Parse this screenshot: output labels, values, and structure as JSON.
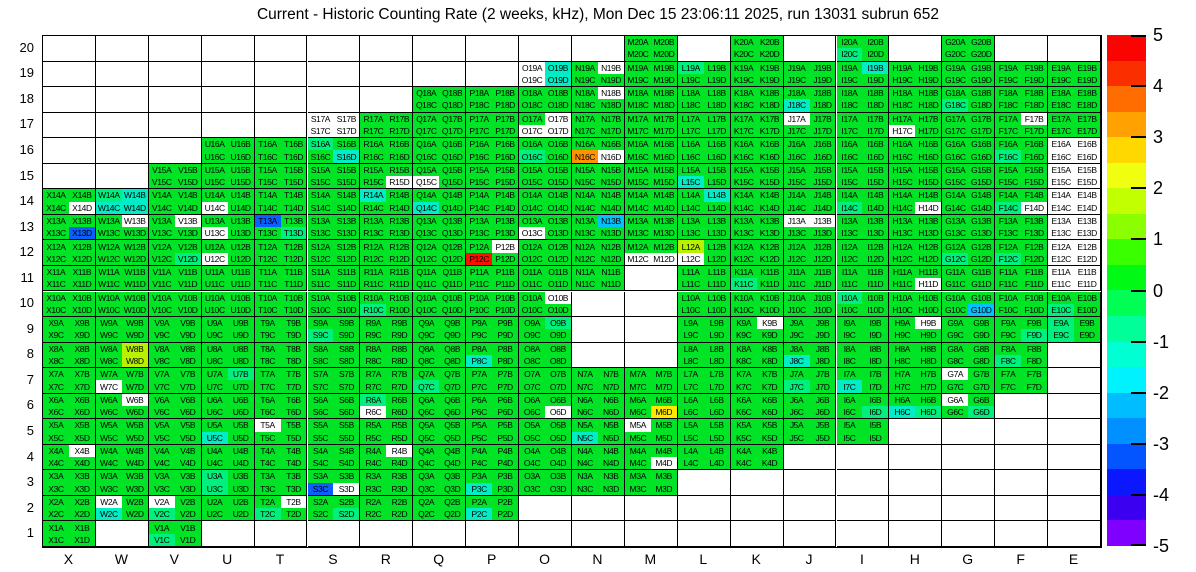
{
  "title": "Current - Historic Counting Rate (2 weeks, kHz), Mon Dec 15 23:06:11 2025, run 13031 subrun 652",
  "chart_data": {
    "type": "heatmap",
    "title": "Current - Historic Counting Rate (2 weeks, kHz), Mon Dec 15 23:06:11 2025, run 13031 subrun 652",
    "xlabel": "",
    "ylabel": "",
    "x_categories": [
      "X",
      "W",
      "V",
      "U",
      "T",
      "S",
      "R",
      "Q",
      "P",
      "O",
      "N",
      "M",
      "L",
      "K",
      "J",
      "I",
      "H",
      "G",
      "F",
      "E"
    ],
    "y_categories": [
      "20",
      "19",
      "18",
      "17",
      "16",
      "15",
      "14",
      "13",
      "12",
      "11",
      "10",
      "9",
      "8",
      "7",
      "6",
      "5",
      "4",
      "3",
      "2",
      "1"
    ],
    "quadrant_letters": [
      "A",
      "B",
      "C",
      "D"
    ],
    "default_code": "g",
    "empty_color": "#FFFFFF",
    "palette": {
      "g": {
        "hex": "#00E425",
        "value_range": "0 to 1"
      },
      "sg": {
        "hex": "#00F07E",
        "value_range": "-0.5 to -1"
      },
      "cy": {
        "hex": "#00EDC6",
        "value_range": "-1 to -1.5"
      },
      "lb": {
        "hex": "#00C2FF",
        "value_range": "-2 to -2.5"
      },
      "bl": {
        "hex": "#095FFF",
        "value_range": "-3 to -3.5"
      },
      "ylg": {
        "hex": "#B9F200",
        "value_range": "1.5 to 2"
      },
      "yl": {
        "hex": "#FFE900",
        "value_range": "2.5 to 3"
      },
      "or": {
        "hex": "#FF9300",
        "value_range": "3.5 to 4"
      },
      "rd": {
        "hex": "#FF0F00",
        "value_range": "4.5 to 5"
      },
      "wh": {
        "hex": "#FFFFFF",
        "value_range": "no data"
      }
    },
    "colorbar": {
      "min": -5,
      "max": 5,
      "tick_labels": [
        "5",
        "4",
        "3",
        "2",
        "1",
        "0",
        "-1",
        "-2",
        "-3",
        "-4",
        "-5"
      ],
      "band_colors": [
        "#F90400",
        "#FB2E00",
        "#FF6C00",
        "#FFA100",
        "#FFD800",
        "#F0FF10",
        "#C2FF00",
        "#8BFF00",
        "#39FF00",
        "#00FA15",
        "#00FF55",
        "#00FF98",
        "#00FFD3",
        "#00F2FF",
        "#00BDFF",
        "#0090FF",
        "#0355FF",
        "#0A17FF",
        "#3B00F0",
        "#7F00FF"
      ]
    },
    "rows": [
      {
        "y": "20",
        "cols": "MKIG"
      },
      {
        "y": "19",
        "cols": "ONMLKJIHGFE"
      },
      {
        "y": "18",
        "cols": "QPONMLKJIHGFE"
      },
      {
        "y": "17",
        "cols": "SRQPONMLKJIHGFE"
      },
      {
        "y": "16",
        "cols": "UTSRQPONMLKJIHGFE"
      },
      {
        "y": "15",
        "cols": "VUTSRQPONMLKJIHGFE"
      },
      {
        "y": "14",
        "cols": "XWVUTSRQPONMLKJIHGFE"
      },
      {
        "y": "13",
        "cols": "XWVUTSRQPONMLKJIHGFE"
      },
      {
        "y": "12",
        "cols": "XWVUTSRQPONMLKJIHGFE"
      },
      {
        "y": "11",
        "cols": "XWVUTSRQPONLKJIHGFE"
      },
      {
        "y": "10",
        "cols": "XWVUTSRQPOLKJIHGFE"
      },
      {
        "y": "9",
        "cols": "XWVUTSRQPOLKJIHGFE"
      },
      {
        "y": "8",
        "cols": "XWVUTSRQPOLKJIHGF"
      },
      {
        "y": "7",
        "cols": "XWVUTSRQPONMLKJIHGF"
      },
      {
        "y": "6",
        "cols": "XWVUTSRQPONMLKJIHG"
      },
      {
        "y": "5",
        "cols": "XWVUTSRQPONMLKJI"
      },
      {
        "y": "4",
        "cols": "XWVUTSRQPONMLK"
      },
      {
        "y": "3",
        "cols": "XWVUTSRQPONM"
      },
      {
        "y": "2",
        "cols": "XWVUTSRQP"
      },
      {
        "y": "1",
        "cols": "XV"
      }
    ],
    "cell_overrides": {
      "I20": [
        "g",
        "g",
        "sg",
        "g"
      ],
      "O19": [
        "wh",
        "cy",
        "wh",
        "cy"
      ],
      "N19": [
        "g",
        "wh",
        "g",
        "g"
      ],
      "L19": [
        "sg",
        "g",
        "g",
        "g"
      ],
      "I19": [
        "g",
        "cy",
        "g",
        "g"
      ],
      "N18": [
        "g",
        "wh",
        "g",
        "g"
      ],
      "J18": [
        "g",
        "g",
        "cy",
        "g"
      ],
      "G18": [
        "g",
        "g",
        "sg",
        "g"
      ],
      "S17": [
        "wh",
        "wh",
        "wh",
        "wh"
      ],
      "O17": [
        "g",
        "wh",
        "wh",
        "wh"
      ],
      "J17": [
        "wh",
        "g",
        "g",
        "g"
      ],
      "H17": [
        "g",
        "g",
        "wh",
        "g"
      ],
      "F17": [
        "g",
        "wh",
        "g",
        "g"
      ],
      "S16": [
        "sg",
        "g",
        "g",
        "cy"
      ],
      "O16": [
        "g",
        "g",
        "sg",
        "g"
      ],
      "N16": [
        "g",
        "g",
        "or",
        "wh"
      ],
      "F16": [
        "g",
        "g",
        "sg",
        "g"
      ],
      "E16": [
        "wh",
        "wh",
        "wh",
        "wh"
      ],
      "R15": [
        "g",
        "g",
        "g",
        "wh"
      ],
      "Q15": [
        "g",
        "g",
        "wh",
        "g"
      ],
      "L15": [
        "g",
        "g",
        "cy",
        "g"
      ],
      "E15": [
        "wh",
        "wh",
        "wh",
        "wh"
      ],
      "X14": [
        "g",
        "g",
        "g",
        "wh"
      ],
      "W14": [
        "sg",
        "cy",
        "cy",
        "cy"
      ],
      "U14": [
        "g",
        "g",
        "wh",
        "g"
      ],
      "R14": [
        "cy",
        "g",
        "g",
        "g"
      ],
      "Q14": [
        "g",
        "g",
        "cy",
        "g"
      ],
      "L14": [
        "g",
        "cy",
        "g",
        "g"
      ],
      "I14": [
        "g",
        "g",
        "sg",
        "g"
      ],
      "H14": [
        "g",
        "g",
        "g",
        "wh"
      ],
      "F14": [
        "g",
        "g",
        "sg",
        "wh"
      ],
      "E14": [
        "wh",
        "wh",
        "wh",
        "wh"
      ],
      "X13": [
        "g",
        "g",
        "g",
        "bl"
      ],
      "W13": [
        "g",
        "wh",
        "g",
        "g"
      ],
      "V13": [
        "g",
        "wh",
        "g",
        "g"
      ],
      "U13": [
        "g",
        "g",
        "wh",
        "g"
      ],
      "T13": [
        "bl",
        "g",
        "g",
        "sg"
      ],
      "O13": [
        "g",
        "g",
        "wh",
        "g"
      ],
      "N13": [
        "g",
        "lb",
        "g",
        "g"
      ],
      "J13": [
        "wh",
        "wh",
        "g",
        "g"
      ],
      "E13": [
        "wh",
        "wh",
        "wh",
        "wh"
      ],
      "V12": [
        "g",
        "g",
        "g",
        "sg"
      ],
      "U12": [
        "g",
        "g",
        "wh",
        "g"
      ],
      "P12": [
        "g",
        "wh",
        "rd",
        "g"
      ],
      "M12": [
        "g",
        "g",
        "wh",
        "wh"
      ],
      "L12": [
        "ylg",
        "g",
        "wh",
        "g"
      ],
      "G12": [
        "g",
        "g",
        "sg",
        "g"
      ],
      "F12": [
        "g",
        "g",
        "sg",
        "g"
      ],
      "E12": [
        "wh",
        "wh",
        "wh",
        "wh"
      ],
      "K11": [
        "g",
        "g",
        "sg",
        "g"
      ],
      "H11": [
        "g",
        "g",
        "g",
        "wh"
      ],
      "E11": [
        "wh",
        "wh",
        "wh",
        "wh"
      ],
      "R10": [
        "g",
        "g",
        "sg",
        "g"
      ],
      "O10": [
        "g",
        "wh",
        "g",
        "g"
      ],
      "I10": [
        "sg",
        "g",
        "g",
        "g"
      ],
      "G10": [
        "g",
        "g",
        "g",
        "lb"
      ],
      "E10": [
        "g",
        "g",
        "sg",
        "g"
      ],
      "S9": [
        "g",
        "g",
        "sg",
        "g"
      ],
      "O9": [
        "g",
        "sg",
        "g",
        "g"
      ],
      "K9": [
        "g",
        "wh",
        "g",
        "g"
      ],
      "H9": [
        "g",
        "wh",
        "g",
        "g"
      ],
      "F9": [
        "g",
        "g",
        "g",
        "sg"
      ],
      "E9": [
        "sg",
        "g",
        "sg",
        "g"
      ],
      "W8": [
        "g",
        "ylg",
        "g",
        "ylg"
      ],
      "P8": [
        "g",
        "g",
        "cy",
        "g"
      ],
      "J8": [
        "g",
        "g",
        "cy",
        "g"
      ],
      "F8": [
        "g",
        "g",
        "sg",
        "g"
      ],
      "W7": [
        "g",
        "g",
        "wh",
        "g"
      ],
      "U7": [
        "g",
        "sg",
        "g",
        "g"
      ],
      "Q7": [
        "g",
        "g",
        "sg",
        "g"
      ],
      "J7": [
        "g",
        "g",
        "sg",
        "g"
      ],
      "I7": [
        "g",
        "g",
        "cy",
        "g"
      ],
      "G7": [
        "wh",
        "g",
        "g",
        "g"
      ],
      "W6": [
        "g",
        "wh",
        "g",
        "g"
      ],
      "R6": [
        "sg",
        "g",
        "wh",
        "g"
      ],
      "O6": [
        "g",
        "g",
        "g",
        "wh"
      ],
      "M6": [
        "g",
        "g",
        "g",
        "yl"
      ],
      "I6": [
        "g",
        "g",
        "g",
        "sg"
      ],
      "H6": [
        "g",
        "g",
        "cy",
        "sg"
      ],
      "G6": [
        "wh",
        "g",
        "g",
        "sg"
      ],
      "U5": [
        "g",
        "g",
        "cy",
        "g"
      ],
      "T5": [
        "wh",
        "g",
        "g",
        "g"
      ],
      "N5": [
        "g",
        "g",
        "cy",
        "g"
      ],
      "M5": [
        "wh",
        "g",
        "g",
        "g"
      ],
      "X4": [
        "g",
        "wh",
        "g",
        "g"
      ],
      "R4": [
        "g",
        "wh",
        "g",
        "g"
      ],
      "M4": [
        "g",
        "g",
        "g",
        "wh"
      ],
      "U3": [
        "sg",
        "g",
        "sg",
        "g"
      ],
      "S3": [
        "g",
        "g",
        "bl",
        "wh"
      ],
      "P3": [
        "g",
        "g",
        "cy",
        "g"
      ],
      "W2": [
        "wh",
        "g",
        "cy",
        "g"
      ],
      "V2": [
        "wh",
        "g",
        "sg",
        "g"
      ],
      "T2": [
        "g",
        "wh",
        "sg",
        "g"
      ],
      "S2": [
        "g",
        "g",
        "g",
        "sg"
      ],
      "P2": [
        "g",
        "g",
        "cy",
        "g"
      ],
      "V1": [
        "g",
        "g",
        "sg",
        "g"
      ]
    }
  }
}
